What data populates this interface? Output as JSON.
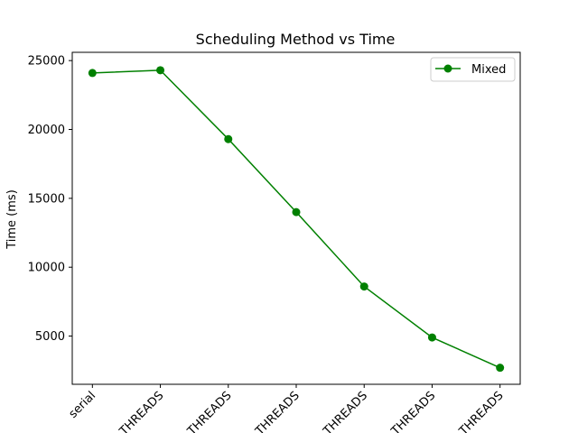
{
  "chart_data": {
    "type": "line",
    "title": "Scheduling Method vs Time",
    "xlabel": "",
    "ylabel": "Time (ms)",
    "categories": [
      "serial",
      "THREADS",
      "THREADS",
      "THREADS",
      "THREADS",
      "THREADS",
      "THREADS"
    ],
    "series": [
      {
        "name": "Mixed",
        "values": [
          24100,
          24300,
          19300,
          14000,
          8600,
          4900,
          2700
        ]
      }
    ],
    "ylim": [
      1500,
      25600
    ],
    "yticks": [
      5000,
      10000,
      15000,
      20000,
      25000
    ],
    "grid": false,
    "legend_position": "top-right",
    "colors": {
      "series": "#008000",
      "axis": "#000000",
      "background": "#ffffff"
    }
  }
}
